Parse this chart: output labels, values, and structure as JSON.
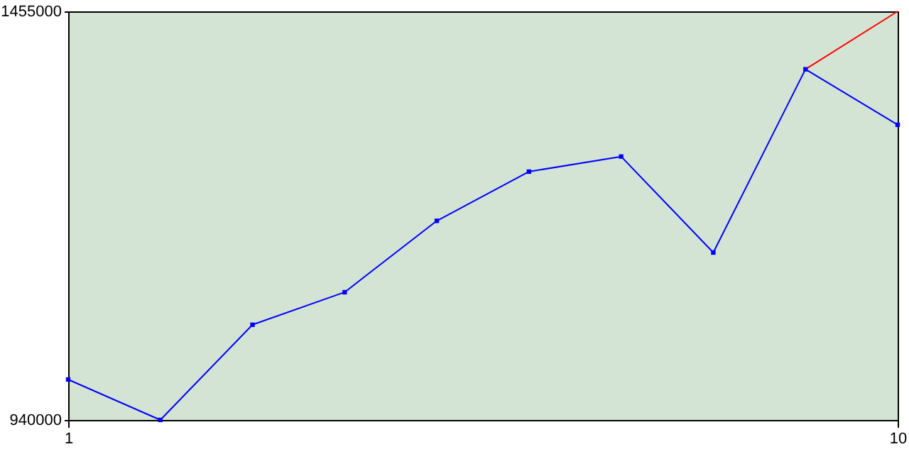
{
  "chart_data": {
    "type": "line",
    "x": [
      1,
      2,
      3,
      4,
      5,
      6,
      7,
      8,
      9,
      10
    ],
    "series": [
      {
        "color": "#ff0000",
        "values": [
          null,
          null,
          null,
          null,
          null,
          null,
          null,
          null,
          1382000,
          1455000
        ],
        "marker": "none"
      },
      {
        "color": "#0000ff",
        "values": [
          991000,
          940000,
          1060000,
          1101000,
          1191000,
          1253000,
          1272000,
          1151000,
          1382000,
          1312000
        ],
        "marker": "square"
      }
    ],
    "xlim": [
      1,
      10
    ],
    "xticks": [
      1,
      10
    ],
    "ylim": [
      940000,
      1455000
    ],
    "yticks": [
      940000,
      1455000
    ],
    "line_style": "solid"
  }
}
